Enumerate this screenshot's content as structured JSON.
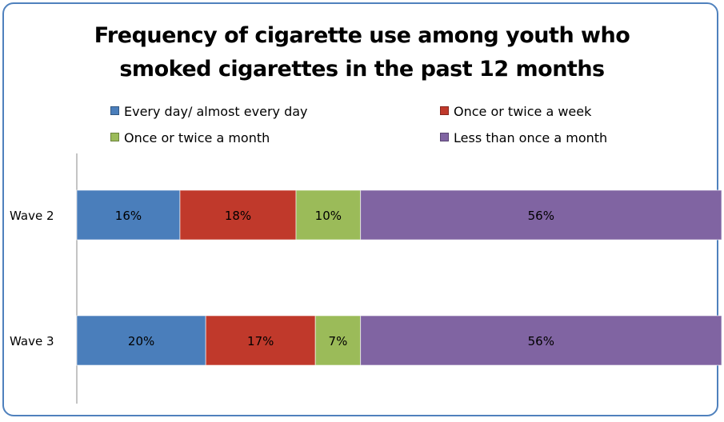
{
  "chart_data": {
    "type": "bar",
    "orientation": "horizontal",
    "stacked": true,
    "title_line1": "Frequency of cigarette use among youth who",
    "title_line2": "smoked cigarettes in the past 12 months",
    "categories": [
      "Wave 2",
      "Wave 3"
    ],
    "series": [
      {
        "name": "Every day/ almost every day",
        "color": "#4a7ebb",
        "values": [
          16,
          20
        ],
        "labels": [
          "16%",
          "20%"
        ]
      },
      {
        "name": "Once or twice a week",
        "color": "#c0392b",
        "values": [
          18,
          17
        ],
        "labels": [
          "18%",
          "17%"
        ]
      },
      {
        "name": "Once or twice a month",
        "color": "#9bbb59",
        "values": [
          10,
          7
        ],
        "labels": [
          "10%",
          "7%"
        ]
      },
      {
        "name": "Less than once a month",
        "color": "#8064a2",
        "values": [
          56,
          56
        ],
        "labels": [
          "56%",
          "56%"
        ]
      }
    ],
    "xlim": [
      0,
      100
    ],
    "legend_position": "top",
    "grid": false
  }
}
